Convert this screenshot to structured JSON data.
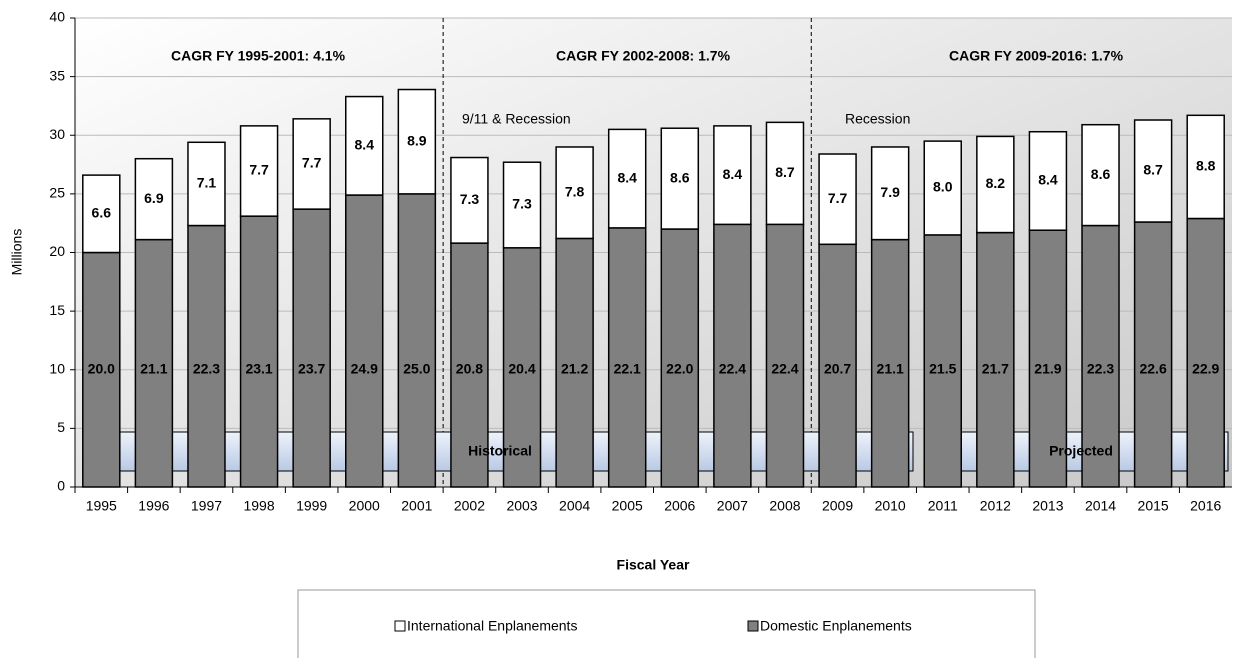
{
  "chart_data": {
    "type": "stacked_bar",
    "y_label": "Millions",
    "x_label": "Fiscal Year",
    "categories": [
      "1995",
      "1996",
      "1997",
      "1998",
      "1999",
      "2000",
      "2001",
      "2002",
      "2003",
      "2004",
      "2005",
      "2006",
      "2007",
      "2008",
      "2009",
      "2010",
      "2011",
      "2012",
      "2013",
      "2014",
      "2015",
      "2016"
    ],
    "series": [
      {
        "name": "Domestic Enplanements",
        "color": "#808080",
        "values": [
          20.0,
          21.1,
          22.3,
          23.1,
          23.7,
          24.9,
          25.0,
          20.8,
          20.4,
          21.2,
          22.1,
          22.0,
          22.4,
          22.4,
          20.7,
          21.1,
          21.5,
          21.7,
          21.9,
          22.3,
          22.6,
          22.9
        ],
        "value_labels": [
          "20.0",
          "21.1",
          "22.3",
          "23.1",
          "23.7",
          "24.9",
          "25.0",
          "20.8",
          "20.4",
          "21.2",
          "22.1",
          "22.0",
          "22.4",
          "22.4",
          "20.7",
          "21.1",
          "21.5",
          "21.7",
          "21.9",
          "22.3",
          "22.6",
          "22.9"
        ]
      },
      {
        "name": "International Enplanements",
        "color": "#ffffff",
        "values": [
          6.6,
          6.9,
          7.1,
          7.7,
          7.7,
          8.4,
          8.9,
          7.3,
          7.3,
          7.8,
          8.4,
          8.6,
          8.4,
          8.7,
          7.7,
          7.9,
          8.0,
          8.2,
          8.4,
          8.6,
          8.7,
          8.8
        ],
        "value_labels": [
          "6.6",
          "6.9",
          "7.1",
          "7.7",
          "7.7",
          "8.4",
          "8.9",
          "7.3",
          "7.3",
          "7.8",
          "8.4",
          "8.6",
          "8.4",
          "8.7",
          "7.7",
          "7.9",
          "8.0",
          "8.2",
          "8.4",
          "8.6",
          "8.7",
          "8.8"
        ]
      }
    ],
    "ylim": [
      0,
      40
    ],
    "yticks": [
      0,
      5,
      10,
      15,
      20,
      25,
      30,
      35,
      40
    ],
    "grid": true,
    "annotations": [
      "CAGR FY 1995-2001: 4.1%",
      "CAGR FY 2002-2008: 1.7%",
      "CAGR FY 2009-2016: 1.7%",
      "9/11 & Recession",
      "Recession",
      "Historical",
      "Projected"
    ]
  }
}
